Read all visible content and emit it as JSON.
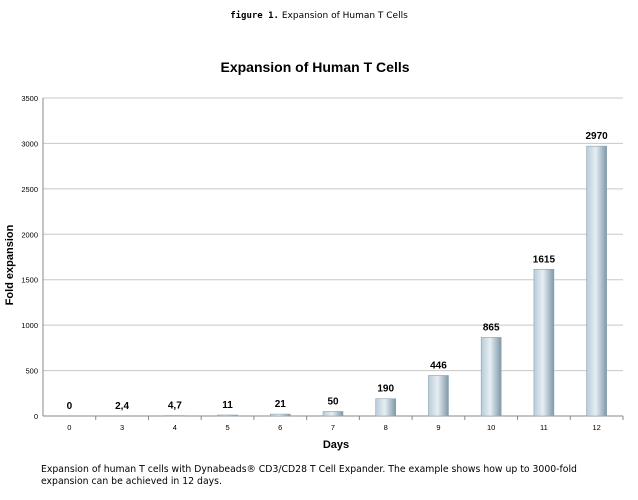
{
  "figure_label": "figure 1.",
  "figure_title": "Expansion of Human T Cells",
  "caption": "Expansion of human T cells with Dynabeads® CD3/CD28 T Cell Expander. The example shows how up to 3000-fold expansion can be achieved in 12 days.",
  "colors": {
    "bar_light": "#e6eef3",
    "bar_mid": "#b9ccd8",
    "bar_dark": "#7f98a8",
    "grid": "#c8c8c8"
  },
  "chart_data": {
    "type": "bar",
    "title": "Expansion of Human T Cells",
    "xlabel": "Days",
    "ylabel": "Fold expansion",
    "categories": [
      "0",
      "3",
      "4",
      "5",
      "6",
      "7",
      "8",
      "9",
      "10",
      "11",
      "12"
    ],
    "values": [
      0,
      2.4,
      4.7,
      11,
      21,
      50,
      190,
      446,
      865,
      1615,
      2970
    ],
    "data_labels": [
      "0",
      "2,4",
      "4,7",
      "11",
      "21",
      "50",
      "190",
      "446",
      "865",
      "1615",
      "2970"
    ],
    "ylim": [
      0,
      3500
    ],
    "yticks": [
      0,
      500,
      1000,
      1500,
      2000,
      2500,
      3000,
      3500
    ],
    "grid": true,
    "legend": "none"
  }
}
